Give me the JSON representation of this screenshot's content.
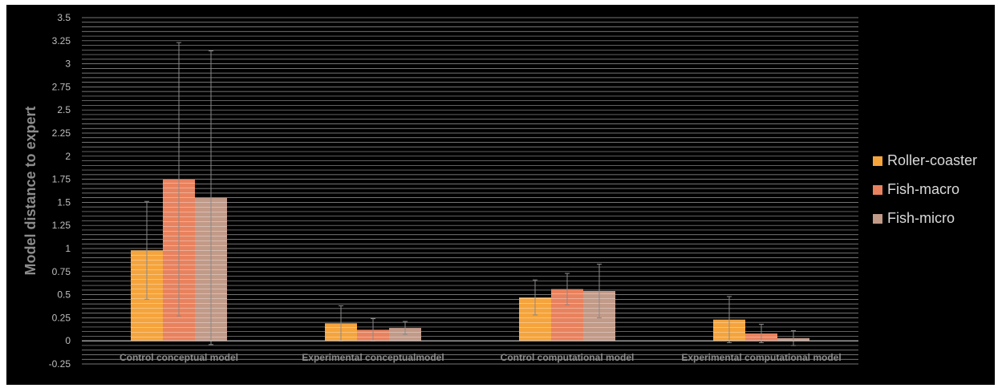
{
  "chart_data": {
    "type": "bar",
    "title": "",
    "xlabel": "",
    "ylabel": "Model distance to expert",
    "ylim": [
      -0.25,
      3.5
    ],
    "ytick_step": 0.25,
    "y_ticks": [
      "-0.25",
      "0",
      "0.25",
      "0.5",
      "0.75",
      "1",
      "1.25",
      "1.5",
      "1.75",
      "2",
      "2.25",
      "2.5",
      "2.75",
      "3",
      "3.25",
      "3.5"
    ],
    "grid": true,
    "legend_position": "right",
    "categories": [
      "Control conceptual model",
      "Experimental conceptualmodel",
      "Control computational model",
      "Experimental computational model"
    ],
    "series": [
      {
        "name": "Roller-coaster",
        "color": "#f5a43c",
        "values": [
          0.98,
          0.19,
          0.47,
          0.23
        ],
        "error": [
          0.53,
          0.19,
          0.19,
          0.25
        ]
      },
      {
        "name": "Fish-macro",
        "color": "#e8825e",
        "values": [
          1.75,
          0.12,
          0.56,
          0.08
        ],
        "error": [
          1.48,
          0.12,
          0.17,
          0.1
        ]
      },
      {
        "name": "Fish-micro",
        "color": "#c29a88",
        "values": [
          1.55,
          0.14,
          0.54,
          0.03
        ],
        "error": [
          1.59,
          0.07,
          0.29,
          0.08
        ]
      }
    ]
  }
}
